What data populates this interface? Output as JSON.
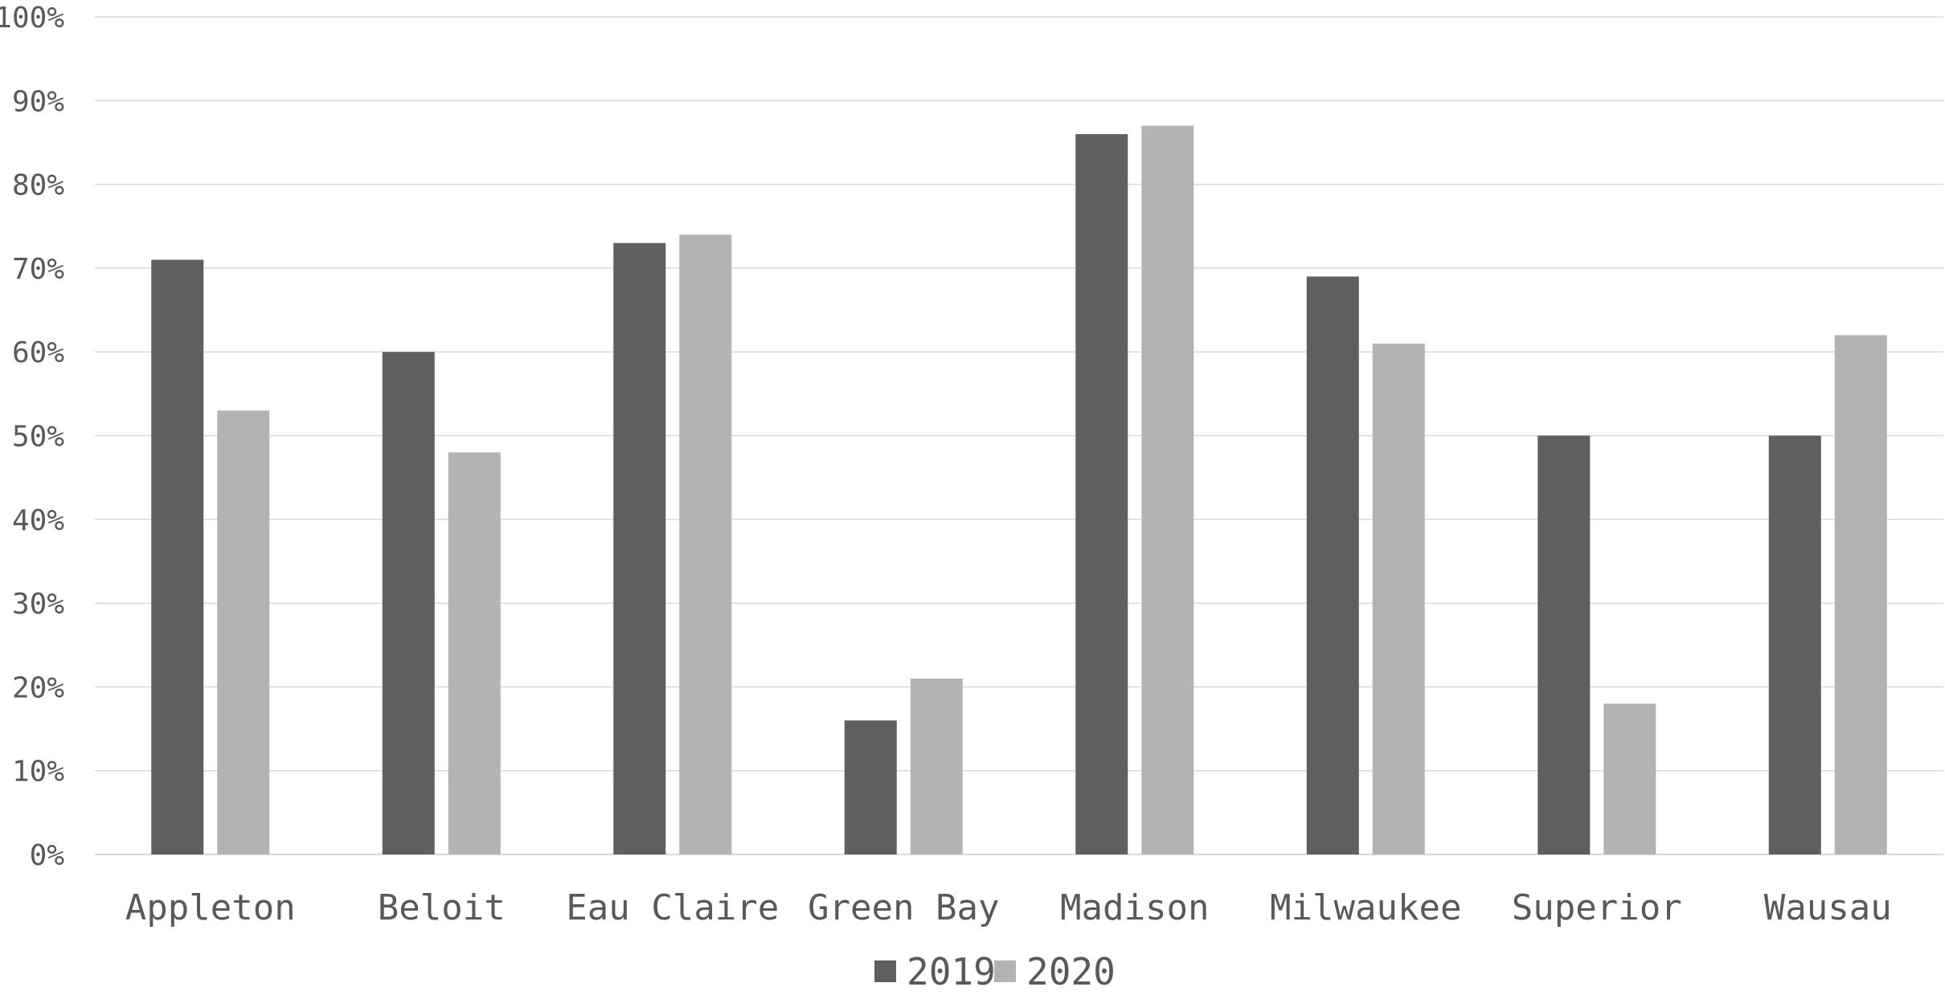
{
  "chart_data": {
    "type": "bar",
    "title": "",
    "xlabel": "",
    "ylabel": "",
    "categories": [
      "Appleton",
      "Beloit",
      "Eau Claire",
      "Green Bay",
      "Madison",
      "Milwaukee",
      "Superior",
      "Wausau"
    ],
    "series": [
      {
        "name": "2019",
        "color": "#5f5f5f",
        "values": [
          71,
          60,
          73,
          16,
          86,
          69,
          50,
          50
        ]
      },
      {
        "name": "2020",
        "color": "#b3b3b3",
        "values": [
          53,
          48,
          74,
          21,
          87,
          61,
          18,
          62
        ]
      }
    ],
    "ylim": [
      0,
      100
    ],
    "yticks": [
      "0%",
      "10%",
      "20%",
      "30%",
      "40%",
      "50%",
      "60%",
      "70%",
      "80%",
      "90%",
      "100%"
    ],
    "ytick_values": [
      0,
      10,
      20,
      30,
      40,
      50,
      60,
      70,
      80,
      90,
      100
    ],
    "grid": true,
    "legend": "bottom-center",
    "gridline_color": "#d9d9d9",
    "axis_color": "#d9d9d9"
  }
}
